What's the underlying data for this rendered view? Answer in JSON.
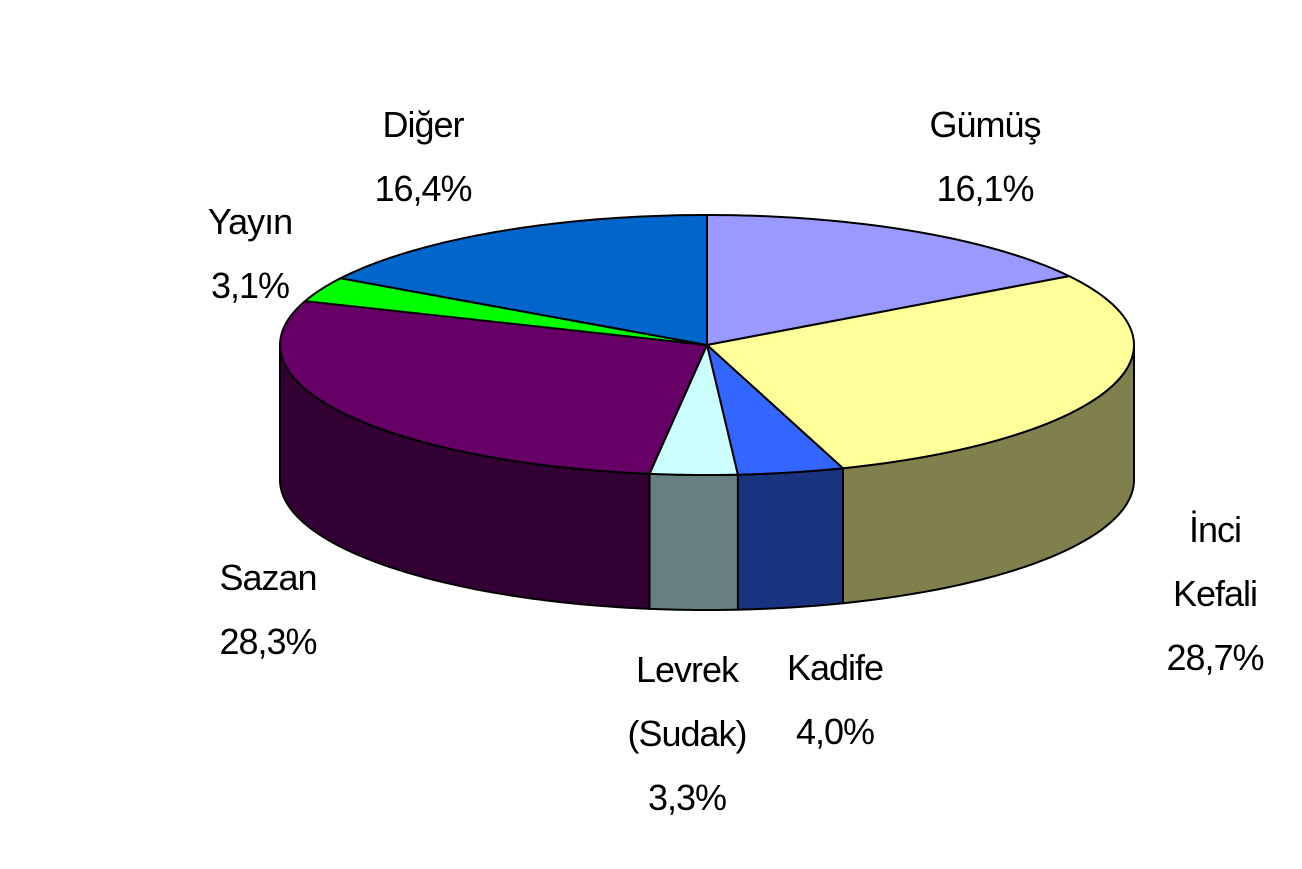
{
  "chart_data": {
    "type": "pie",
    "categories": [
      "Gümüş",
      "İnci Kefali",
      "Kadife",
      "Levrek\n(Sudak)",
      "Sazan",
      "Yayın",
      "Diğer"
    ],
    "values": [
      16.1,
      28.7,
      4.0,
      3.3,
      28.3,
      3.1,
      16.4
    ],
    "value_labels": [
      "16,1%",
      "28,7%",
      "4,0%",
      "3,3%",
      "28,3%",
      "3,1%",
      "16,4%"
    ],
    "colors": [
      "#9999ff",
      "#ffff99",
      "#3366ff",
      "#ccffff",
      "#660066",
      "#00ff00",
      "#0066cc"
    ]
  }
}
